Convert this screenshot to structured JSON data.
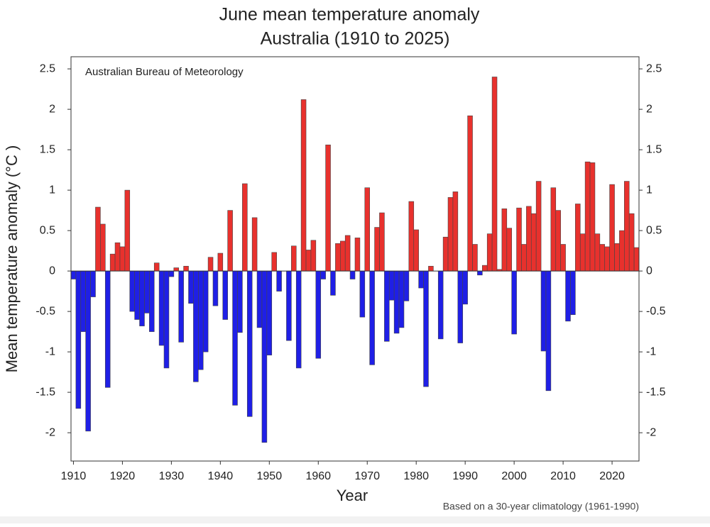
{
  "chart_data": {
    "type": "bar",
    "title": [
      "June mean temperature anomaly",
      "Australia (1910 to 2025)"
    ],
    "annotation": "Australian Bureau of Meteorology",
    "footnote": "Based on a 30-year climatology (1961-1990)",
    "x_label": "Year",
    "y_label": "Mean temperature anomaly (°C )",
    "x": [
      1910,
      1911,
      1912,
      1913,
      1914,
      1915,
      1916,
      1917,
      1918,
      1919,
      1920,
      1921,
      1922,
      1923,
      1924,
      1925,
      1926,
      1927,
      1928,
      1929,
      1930,
      1931,
      1932,
      1933,
      1934,
      1935,
      1936,
      1937,
      1938,
      1939,
      1940,
      1941,
      1942,
      1943,
      1944,
      1945,
      1946,
      1947,
      1948,
      1949,
      1950,
      1951,
      1952,
      1953,
      1954,
      1955,
      1956,
      1957,
      1958,
      1959,
      1960,
      1961,
      1962,
      1963,
      1964,
      1965,
      1966,
      1967,
      1968,
      1969,
      1970,
      1971,
      1972,
      1973,
      1974,
      1975,
      1976,
      1977,
      1978,
      1979,
      1980,
      1981,
      1982,
      1983,
      1984,
      1985,
      1986,
      1987,
      1988,
      1989,
      1990,
      1991,
      1992,
      1993,
      1994,
      1995,
      1996,
      1997,
      1998,
      1999,
      2000,
      2001,
      2002,
      2003,
      2004,
      2005,
      2006,
      2007,
      2008,
      2009,
      2010,
      2011,
      2012,
      2013,
      2014,
      2015,
      2016,
      2017,
      2018,
      2019,
      2020,
      2021,
      2022,
      2023,
      2024,
      2025
    ],
    "values": [
      -0.1,
      -1.7,
      -0.75,
      -1.98,
      -0.32,
      0.79,
      0.58,
      -1.44,
      0.21,
      0.35,
      0.3,
      1.0,
      -0.5,
      -0.6,
      -0.68,
      -0.52,
      -0.75,
      0.1,
      -0.92,
      -1.2,
      -0.07,
      0.04,
      -0.88,
      0.06,
      -0.4,
      -1.37,
      -1.22,
      -1.0,
      0.17,
      -0.43,
      0.22,
      -0.6,
      0.75,
      -1.66,
      -0.76,
      1.08,
      -1.8,
      0.66,
      -0.7,
      -2.12,
      -1.04,
      0.23,
      -0.25,
      0.0,
      -0.86,
      0.31,
      -1.2,
      2.12,
      0.26,
      0.38,
      -1.08,
      -0.1,
      1.56,
      -0.3,
      0.34,
      0.37,
      0.44,
      -0.1,
      0.41,
      -0.57,
      1.03,
      -1.16,
      0.54,
      0.72,
      -0.87,
      -0.36,
      -0.77,
      -0.7,
      -0.37,
      0.86,
      0.51,
      -0.21,
      -1.43,
      0.06,
      0.0,
      -0.84,
      0.42,
      0.91,
      0.98,
      -0.89,
      -0.41,
      1.92,
      0.33,
      -0.05,
      0.07,
      0.46,
      2.4,
      0.02,
      0.77,
      0.53,
      -0.78,
      0.78,
      0.33,
      0.8,
      0.71,
      1.11,
      -0.99,
      -1.48,
      1.03,
      0.75,
      0.33,
      -0.62,
      -0.54,
      0.83,
      0.46,
      1.35,
      1.34,
      0.46,
      0.33,
      0.3,
      1.07,
      0.34,
      0.5,
      1.11,
      0.71,
      0.29
    ],
    "positive_color": "#e8312d",
    "negative_color": "#1f1fe6",
    "xlim": [
      1909.5,
      2025.5
    ],
    "xticks": [
      1910,
      1920,
      1930,
      1940,
      1950,
      1960,
      1970,
      1980,
      1990,
      2000,
      2010,
      2020
    ],
    "ylim": [
      -2.35,
      2.65
    ],
    "yticks": [
      -2,
      -1.5,
      -1,
      -0.5,
      0,
      0.5,
      1,
      1.5,
      2,
      2.5
    ],
    "grid": false
  }
}
